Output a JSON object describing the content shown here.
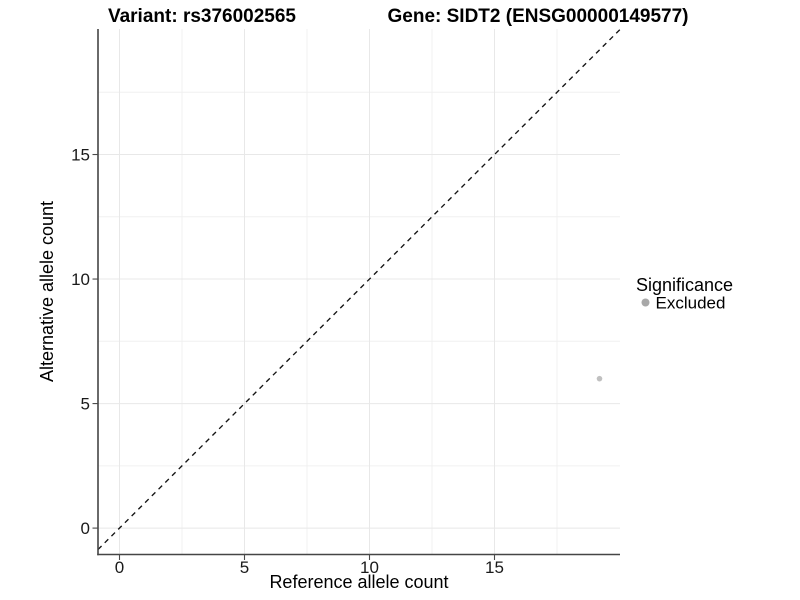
{
  "chart_data": {
    "type": "scatter",
    "titles": {
      "left": "Variant: rs376002565",
      "right": "Gene: SIDT2 (ENSG00000149577)"
    },
    "xlabel": "Reference allele count",
    "ylabel": "Alternative allele count",
    "xlim": [
      -0.86,
      20.02
    ],
    "ylim": [
      -1.06,
      20.04
    ],
    "xticks": [
      0,
      5,
      10,
      15
    ],
    "yticks": [
      0,
      5,
      10,
      15
    ],
    "x_minor_breaks": [
      2.5,
      7.5,
      12.5,
      17.5
    ],
    "y_minor_breaks": [
      2.5,
      7.5,
      12.5,
      17.5
    ],
    "grid": true,
    "identity_line": {
      "slope": 1,
      "intercept": 0,
      "linetype": "dashed",
      "color": "#141414"
    },
    "series": [
      {
        "name": "Excluded",
        "color": "#c0c0c0",
        "points": [
          {
            "x": 19.2,
            "y": 6
          }
        ]
      }
    ],
    "legend": {
      "title": "Significance",
      "position": "right",
      "items": [
        {
          "label": "Excluded",
          "color": "#a8a8a8"
        }
      ]
    },
    "colors": {
      "background": "#ffffff",
      "grid_major": "#e8e8e8",
      "grid_minor": "#f0f0f0",
      "axis_line": "#454545",
      "tick_mark": "#4a4a4a"
    }
  }
}
